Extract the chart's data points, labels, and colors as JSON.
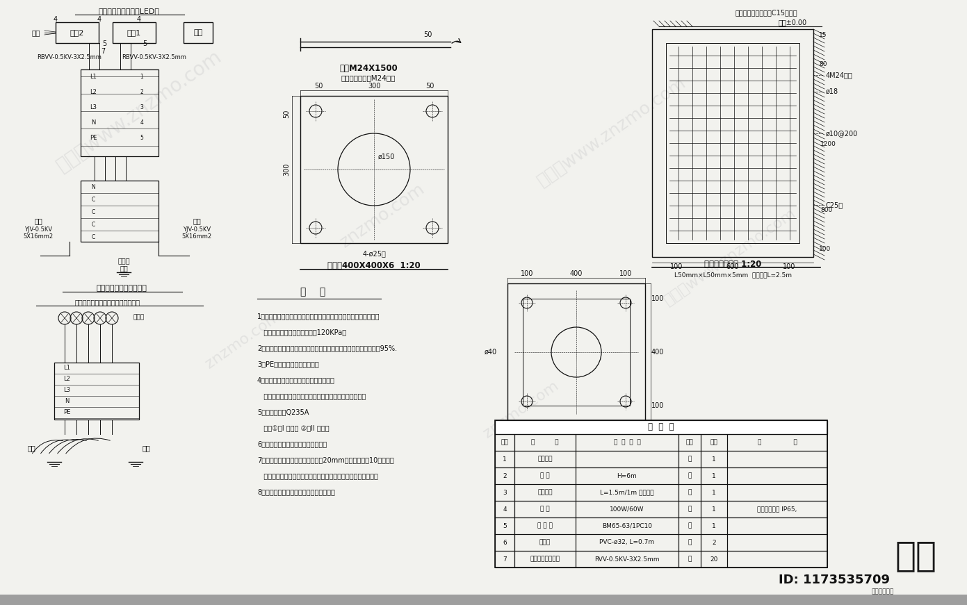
{
  "bg_color": "#f2f2ee",
  "line_color": "#111111",
  "title_text": "路灯大样图二",
  "id_text": "ID: 1173535709",
  "table_title": "明  细  表",
  "table_headers": [
    "序号",
    "名          称",
    "型  号  规  格",
    "单位",
    "数量",
    "备                注"
  ],
  "table_rows": [
    [
      "1",
      "灯座基础",
      "",
      "个",
      "1",
      ""
    ],
    [
      "2",
      "灯 杆",
      "H=6m",
      "根",
      "1",
      ""
    ],
    [
      "3",
      "单管灯架",
      "L=1.5m/1m 单行壁制",
      "根",
      "1",
      ""
    ],
    [
      "4",
      "灯 具",
      "100W/60W",
      "套",
      "1",
      "防尘防水等级 IP65,"
    ],
    [
      "5",
      "断 路 器",
      "BM65-63/1PC10",
      "个",
      "1",
      ""
    ],
    [
      "6",
      "塑料管",
      "PVC-ø32, L=0.7m",
      "个",
      "2",
      ""
    ],
    [
      "7",
      "塑料绝缘铜芯电线",
      "RVV-0.5KV-3X2.5mm",
      "米",
      "20",
      ""
    ]
  ],
  "notes_title": "说    明",
  "notes": [
    "1、要求灯基础置于原状土上，如遇不良地质土层应进行地基处理，",
    "   地基承载力设计值要求不小于120KPa。",
    "2、基础周围回填土应按通路人行道压实度要求处理，压实度要求为95%.",
    "3、PE线和接地线应可靠焊接。",
    "4、灯杆订制时，应提供此图给制造厂家。",
    "   法兰盘尺寸及螺孔交叉尺以具体定做灯杆相应尺寸为准。",
    "5、钢板材质：Q235A",
    "   钢筋①：I 级钢筋 ②：II 级钢筋",
    "6、灯杆与法兰盘连接处要求满焊接。",
    "7、灯杆施工完成后，法兰盘覆地面20mm高度，全部挂10号素桩，",
    "   表面置复涂磷酸锌片，以保护灯座脚螺栓和螺母不生锈不丢失。",
    "8、所有外露金属件应应做防锈镀锌处理。"
  ],
  "top_note": "灯具采用容易更换的LED灯",
  "section_title1": "双臂单回灯具内部接线图",
  "section_title2": "双臂单杆无分支线的灯具内部接线图",
  "flange_title": "法兰盘400X400X6  1:20",
  "bolt_label": "螺栓M24X1500",
  "bolt_sublabel": "每个螺栓配三个M24螺母",
  "foundation_title": "灯具灯杆基础图 1:20",
  "pole_note": "待电杆安装完毕后灌C15砼浆夹",
  "ground_level": "地面±0.00",
  "cable1": "RBVV-0.5KV-3X2.5mm",
  "cable2": "RBVV-0.5KV-3X2.5mm",
  "bottom_cable1": "进线 YJV-0.5KV 5X16mm2",
  "bottom_cable2": "进线 YJV-0.5KV 5X16mm2"
}
